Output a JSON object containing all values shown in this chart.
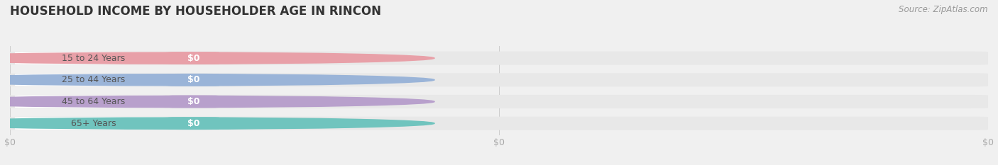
{
  "title": "HOUSEHOLD INCOME BY HOUSEHOLDER AGE IN RINCON",
  "source_text": "Source: ZipAtlas.com",
  "categories": [
    "15 to 24 Years",
    "25 to 44 Years",
    "45 to 64 Years",
    "65+ Years"
  ],
  "values": [
    0,
    0,
    0,
    0
  ],
  "bar_colors": [
    "#e8a0a8",
    "#9ab4d8",
    "#b8a0cc",
    "#70c4be"
  ],
  "bg_color": "#f0f0f0",
  "bar_bg_color": "#e8e8e8",
  "white_pill_color": "#ffffff",
  "xlim": [
    0,
    1
  ],
  "title_fontsize": 12,
  "source_fontsize": 8.5,
  "tick_label_fontsize": 9,
  "bar_label_fontsize": 9,
  "category_fontsize": 9,
  "bar_height": 0.62,
  "bar_text_color": "#ffffff",
  "category_text_color": "#555555",
  "tick_color": "#aaaaaa",
  "grid_color": "#cccccc",
  "x_ticks": [
    0,
    0.5,
    1
  ],
  "x_tick_labels": [
    "$0",
    "$0",
    "$0"
  ]
}
